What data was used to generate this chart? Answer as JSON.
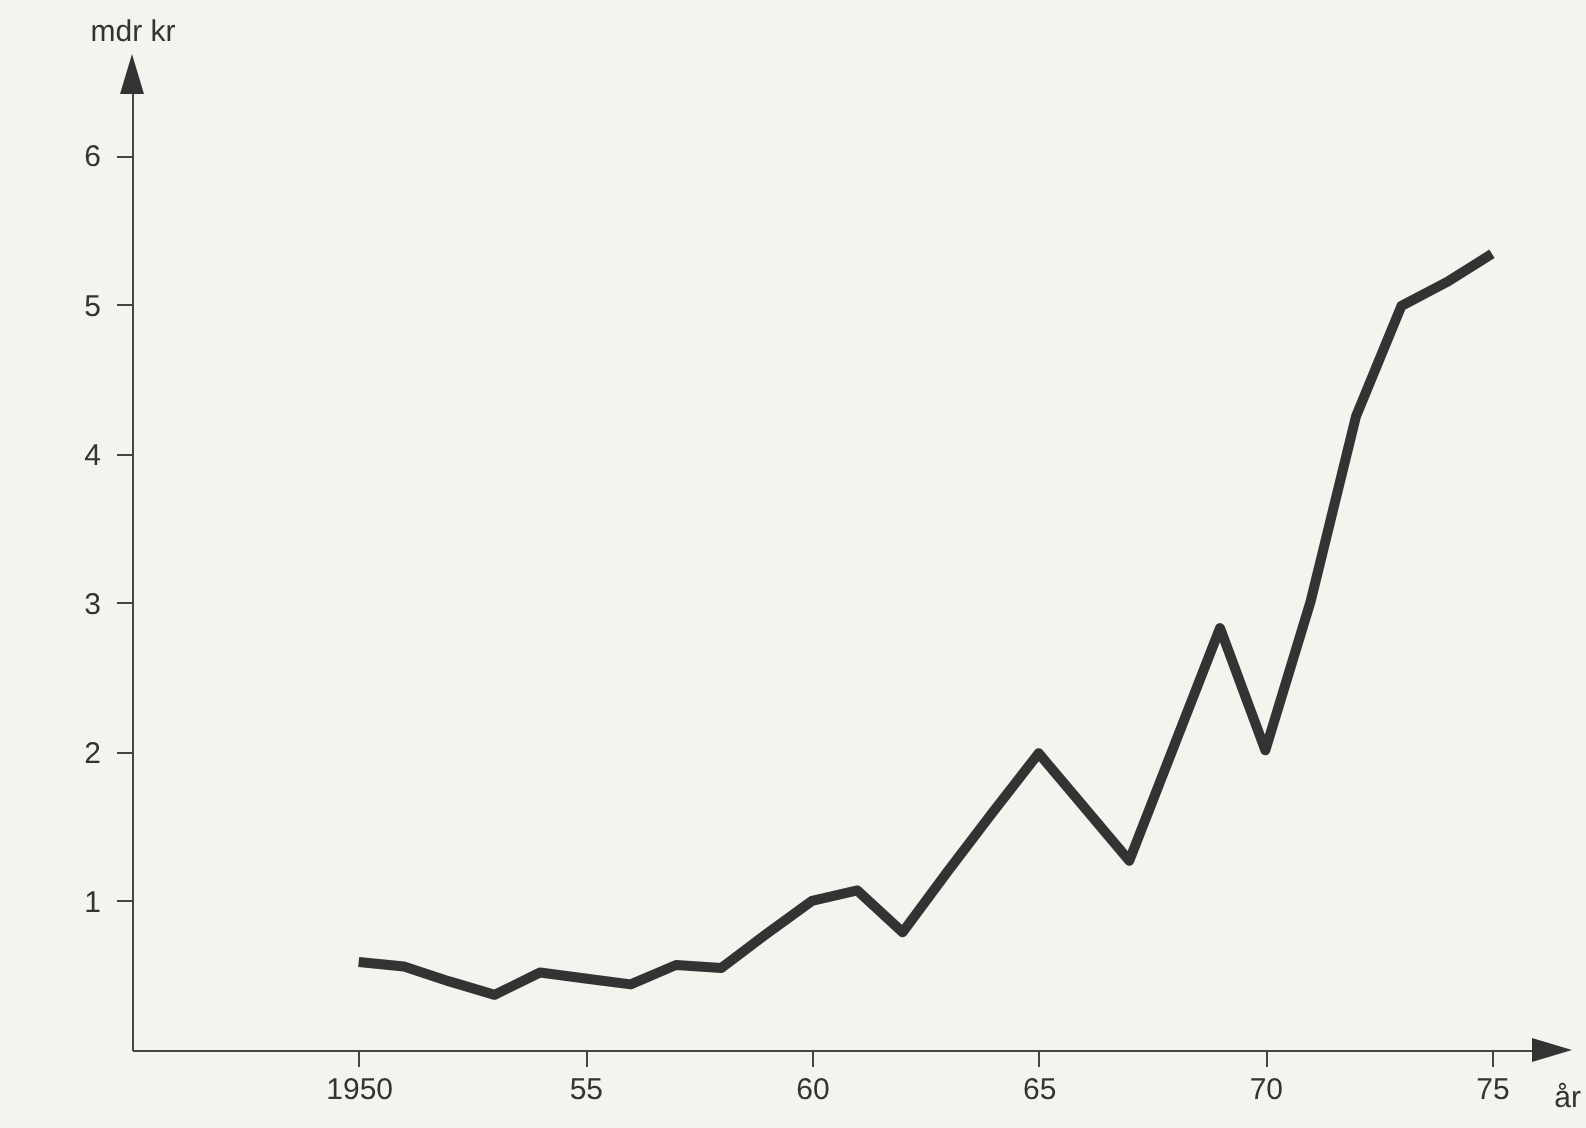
{
  "chart_data": {
    "type": "line",
    "xlabel": "år",
    "ylabel": "mdr kr",
    "x": [
      1950,
      1951,
      1952,
      1953,
      1954,
      1955,
      1956,
      1957,
      1958,
      1959,
      1960,
      1961,
      1962,
      1963,
      1964,
      1965,
      1966,
      1967,
      1968,
      1969,
      1970,
      1971,
      1972,
      1973,
      1974,
      1975
    ],
    "series": [
      {
        "color": "#333333",
        "values": [
          0.59,
          0.56,
          0.46,
          0.37,
          0.52,
          0.48,
          0.44,
          0.57,
          0.55,
          0.78,
          1.0,
          1.07,
          0.79,
          1.2,
          1.6,
          1.99,
          1.63,
          1.27,
          2.05,
          2.83,
          2.01,
          3.01,
          4.25,
          4.99,
          5.15,
          5.34
        ]
      }
    ],
    "xlim": [
      1945,
      1976.5
    ],
    "ylim": [
      0,
      6.6
    ],
    "xticks": [
      1950,
      {
        "value": 1955,
        "label": "55"
      },
      {
        "value": 1960,
        "label": "60"
      },
      {
        "value": 1965,
        "label": "65"
      },
      {
        "value": 1970,
        "label": "70"
      },
      {
        "value": 1975,
        "label": "75"
      }
    ],
    "yticks": [
      1,
      2,
      3,
      4,
      5,
      6
    ],
    "grid": false,
    "marker": "none",
    "line_style": "solid"
  }
}
